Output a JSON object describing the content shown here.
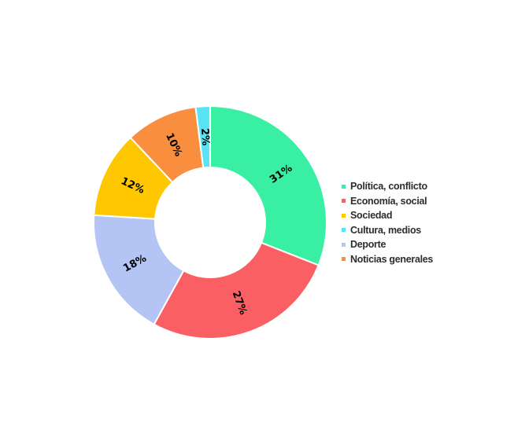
{
  "chart_data": {
    "type": "pie",
    "subtype": "donut",
    "title": "",
    "direction": "clockwise",
    "start_angle_deg": 0,
    "hole_ratio": 0.47,
    "legend_position": "right-middle",
    "separator_color": "#ffffff",
    "label_color": "#000000",
    "legend_text_color": "#2d2d2d",
    "slices": [
      {
        "label": "Política, conflicto",
        "value": 31,
        "display": "31%",
        "color": "#38EFA3"
      },
      {
        "label": "Economía, social",
        "value": 27,
        "display": "27%",
        "color": "#FA5F64"
      },
      {
        "label": "Deporte",
        "value": 18,
        "display": "18%",
        "color": "#B3C4F5"
      },
      {
        "label": "Sociedad",
        "value": 12,
        "display": "12%",
        "color": "#FEC700"
      },
      {
        "label": "Noticias generales",
        "value": 10,
        "display": "10%",
        "color": "#F98E3E"
      },
      {
        "label": "Cultura, medios",
        "value": 2,
        "display": "2%",
        "color": "#58E4F5"
      }
    ],
    "legend": [
      {
        "label": "Política, conflicto",
        "color": "#38EFA3"
      },
      {
        "label": "Economía, social",
        "color": "#FA5F64"
      },
      {
        "label": "Sociedad",
        "color": "#FEC700"
      },
      {
        "label": "Cultura, medios",
        "color": "#58E4F5"
      },
      {
        "label": "Deporte",
        "color": "#B3C4F5"
      },
      {
        "label": "Noticias generales",
        "color": "#F98E3E"
      }
    ]
  }
}
